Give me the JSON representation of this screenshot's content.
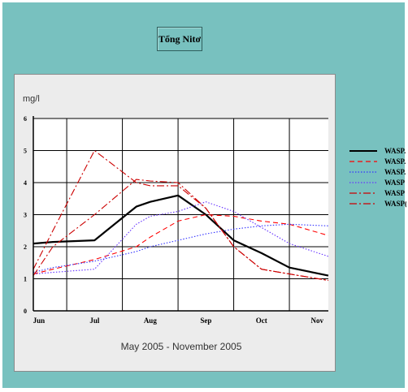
{
  "chart_data": {
    "type": "line",
    "title": "Tổng Nitơ",
    "ylabel": "mg/l",
    "xlabel": "May 2005 - November 2005",
    "categories": [
      "Jun",
      "Jul",
      "Aug",
      "Sep",
      "Oct",
      "Nov"
    ],
    "ylim": [
      0,
      6
    ],
    "yticks": [
      "0",
      "1",
      "2",
      "3",
      "4",
      "5",
      "6"
    ],
    "grid": true,
    "legend_position": "right, outside plot",
    "x": [
      0.9,
      1.25,
      2.0,
      2.75,
      3.0,
      3.5,
      4.0,
      4.5,
      5.0,
      5.5,
      6.2
    ],
    "series": [
      {
        "name": "WASP.",
        "color": "#000000",
        "style": "solid",
        "values": [
          2.1,
          2.15,
          2.2,
          3.25,
          3.4,
          3.6,
          3.0,
          2.2,
          1.8,
          1.35,
          1.1
        ]
      },
      {
        "name": "WASP.",
        "color": "#ff0000",
        "style": "dashed",
        "values": [
          1.15,
          1.3,
          1.6,
          2.0,
          2.3,
          2.8,
          3.0,
          2.95,
          2.8,
          2.7,
          2.35
        ]
      },
      {
        "name": "WASP.",
        "color": "#3333ff",
        "style": "dotted",
        "values": [
          1.2,
          1.35,
          1.55,
          1.85,
          2.0,
          2.2,
          2.4,
          2.55,
          2.65,
          2.7,
          2.65
        ]
      },
      {
        "name": "WASP",
        "color": "#6633ff",
        "style": "dotted",
        "values": [
          1.15,
          1.2,
          1.3,
          2.7,
          2.95,
          3.1,
          3.4,
          3.1,
          2.6,
          2.1,
          1.7
        ]
      },
      {
        "name": "WASP",
        "color": "#cc0000",
        "style": "dashdot",
        "values": [
          1.3,
          2.5,
          5.0,
          4.0,
          3.9,
          3.9,
          3.2,
          2.0,
          1.3,
          1.15,
          0.95
        ]
      },
      {
        "name": "WASP(",
        "color": "#cc0000",
        "style": "dashdot",
        "values": [
          1.1,
          2.0,
          3.0,
          4.1,
          4.05,
          4.0,
          3.2,
          2.0,
          1.3,
          1.15,
          0.95
        ]
      }
    ]
  }
}
